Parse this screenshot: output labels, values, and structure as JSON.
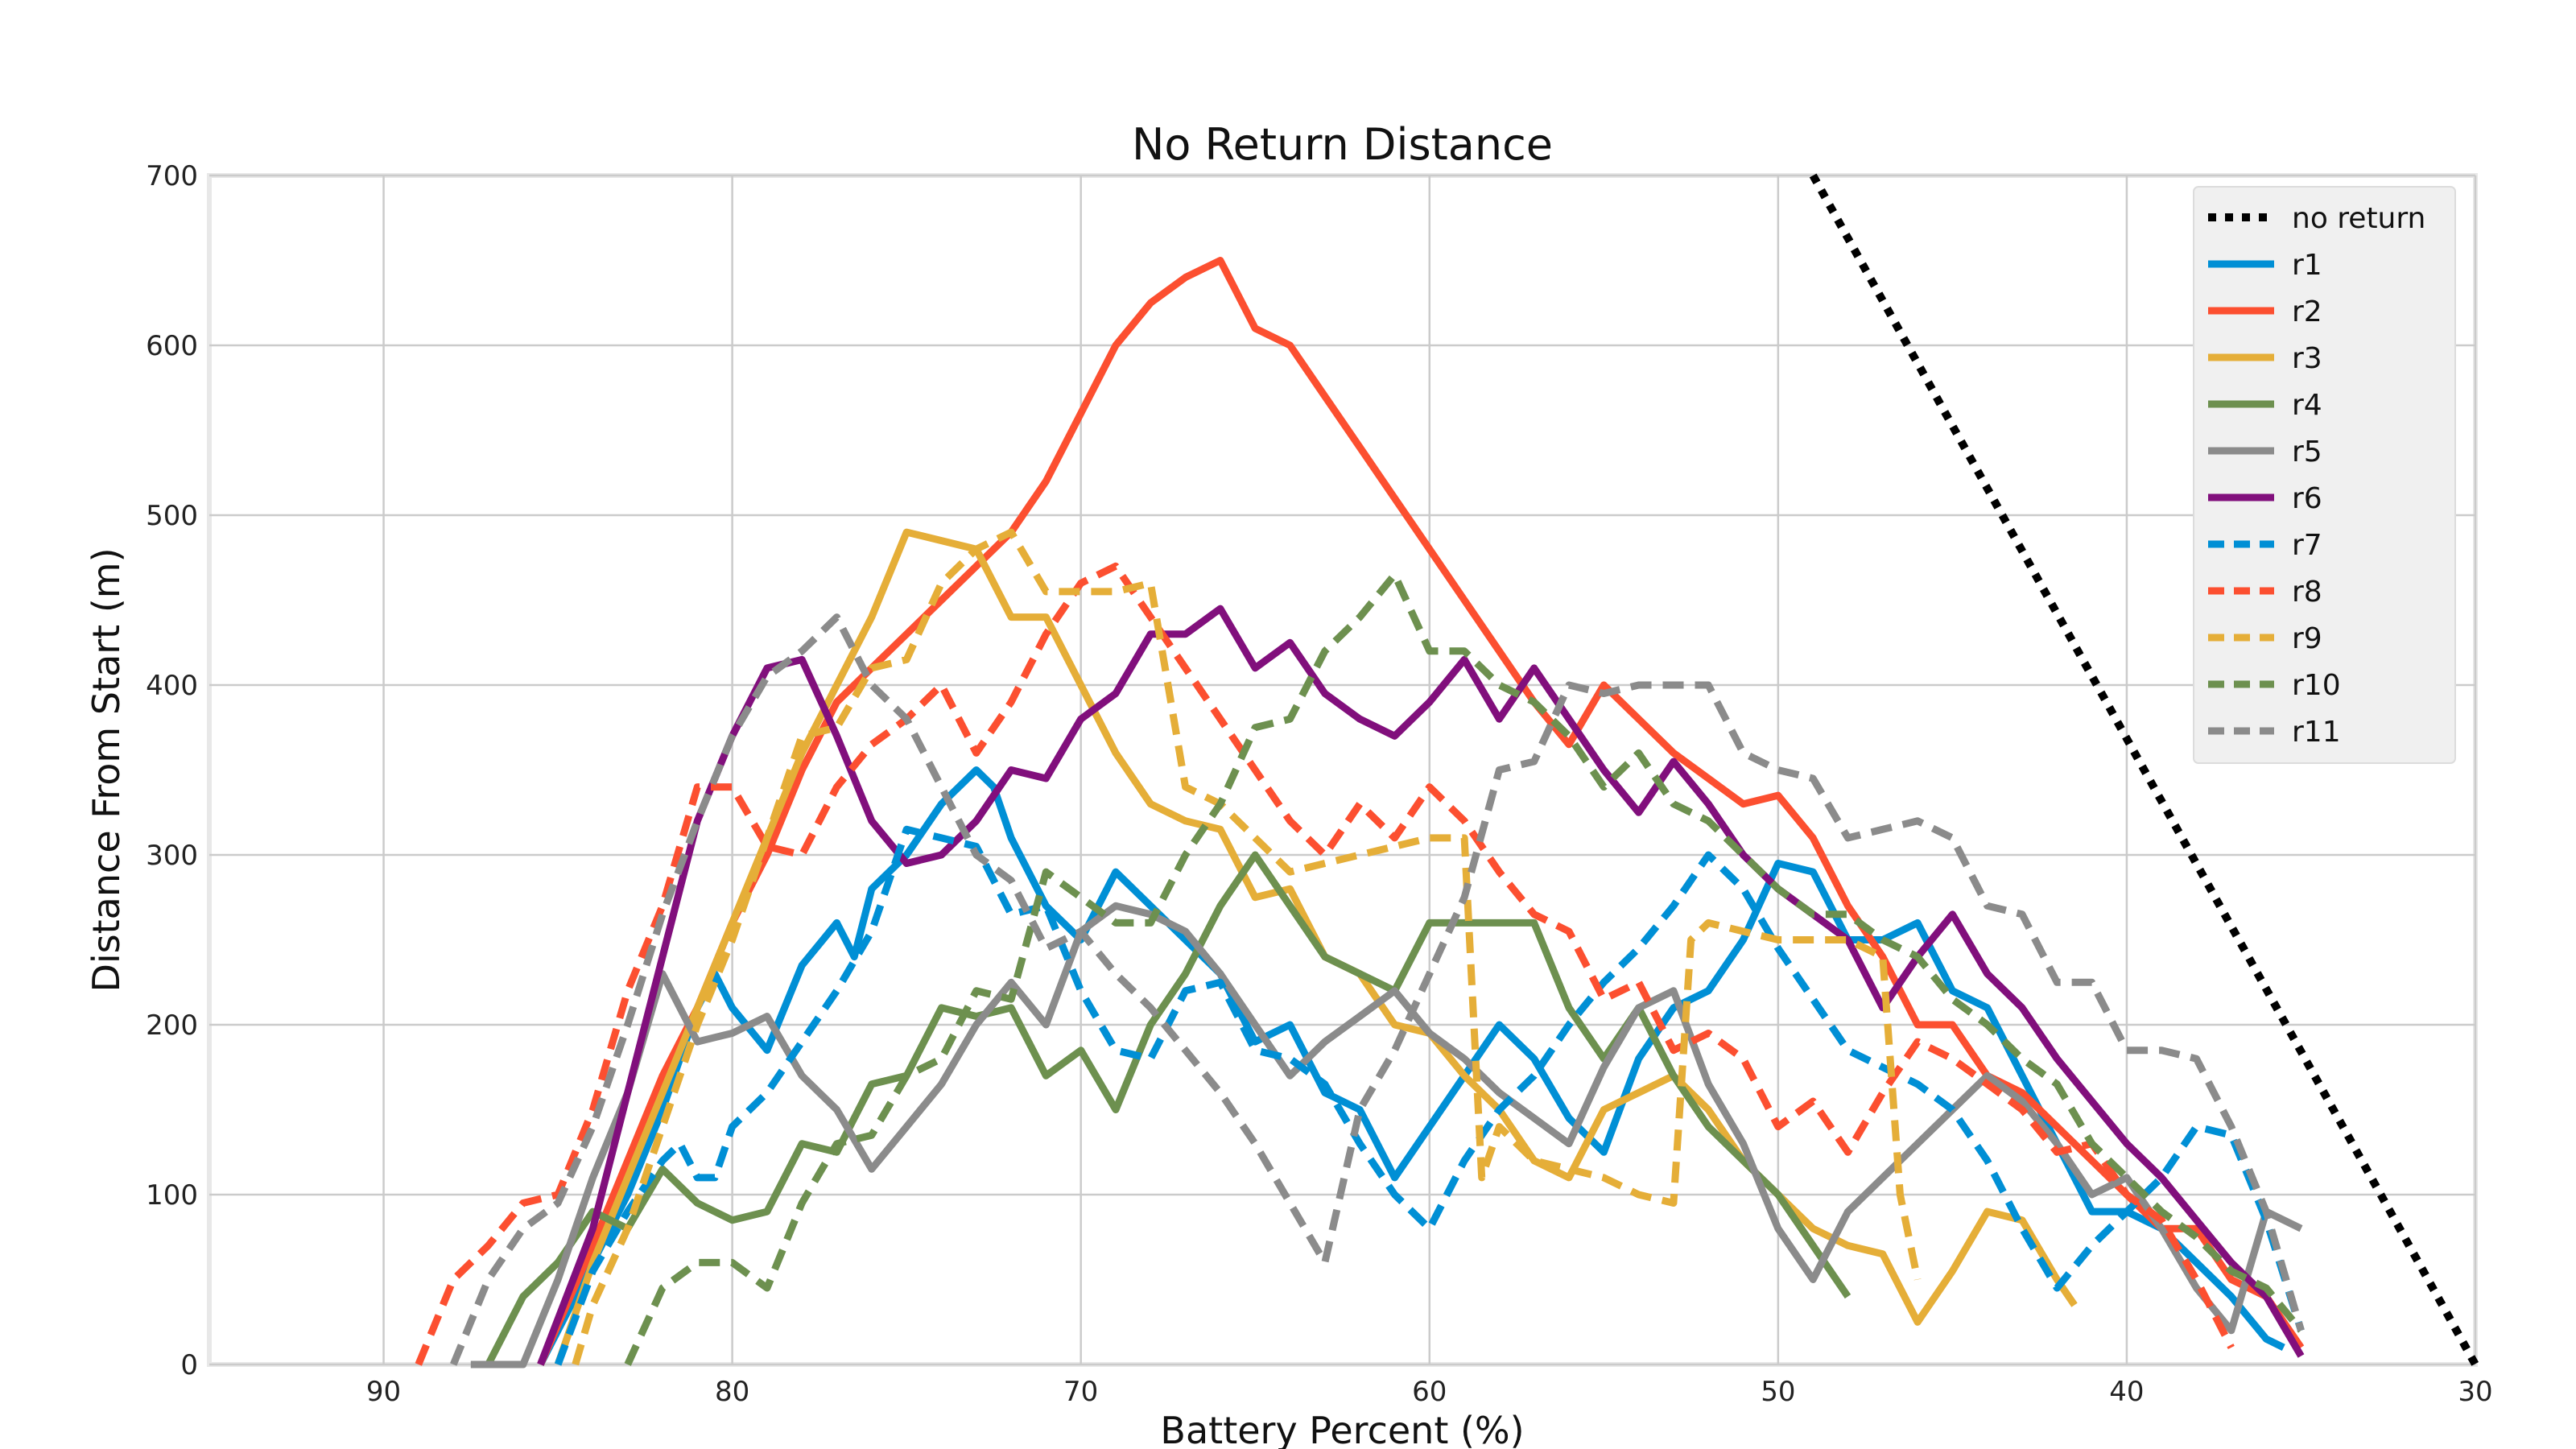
{
  "chart_data": {
    "type": "line",
    "title": "No Return Distance",
    "xlabel": "Battery Percent (%)",
    "ylabel": "Distance From Start (m)",
    "xlim": [
      95,
      30
    ],
    "ylim": [
      0,
      700
    ],
    "xticks": [
      90,
      80,
      70,
      60,
      50,
      40,
      30
    ],
    "yticks": [
      0,
      100,
      200,
      300,
      400,
      500,
      600,
      700
    ],
    "grid": true,
    "legend_position": "top-right",
    "series": [
      {
        "name": "no return",
        "color": "#000000",
        "style": "dotted",
        "x": [
          49,
          30
        ],
        "y": [
          700,
          0
        ]
      },
      {
        "name": "r1",
        "color": "#008fd5",
        "style": "solid",
        "x": [
          85.5,
          84,
          83,
          82,
          81,
          80.5,
          80,
          79,
          78,
          77,
          76.5,
          76,
          75,
          74,
          73,
          72.5,
          72,
          71,
          70,
          69,
          68,
          67,
          66,
          65,
          64,
          63,
          62,
          61,
          60,
          59,
          58,
          57,
          56,
          55,
          54,
          53,
          52,
          51,
          50,
          49,
          48,
          47,
          46,
          45,
          44,
          43,
          42,
          41,
          40,
          39,
          38,
          37,
          36,
          35.5
        ],
        "y": [
          0,
          60,
          100,
          150,
          210,
          230,
          210,
          185,
          235,
          260,
          240,
          280,
          300,
          330,
          350,
          340,
          310,
          270,
          250,
          290,
          270,
          250,
          230,
          190,
          200,
          160,
          150,
          110,
          140,
          170,
          200,
          180,
          145,
          125,
          180,
          210,
          220,
          250,
          295,
          290,
          250,
          250,
          260,
          220,
          210,
          170,
          130,
          90,
          90,
          80,
          60,
          40,
          15,
          10
        ]
      },
      {
        "name": "r2",
        "color": "#fc4f30",
        "style": "solid",
        "x": [
          85.5,
          84,
          83,
          82,
          81,
          80,
          79,
          78,
          77,
          76,
          75,
          74,
          73,
          72,
          71,
          70,
          69,
          68,
          67,
          66,
          65,
          64,
          63,
          62,
          61,
          60,
          59,
          58,
          57,
          56,
          55,
          54,
          53,
          52,
          51,
          50,
          49,
          48,
          47,
          46,
          45,
          44,
          43,
          42,
          41,
          40,
          39,
          38,
          37,
          36,
          35
        ],
        "y": [
          0,
          70,
          120,
          170,
          210,
          260,
          300,
          350,
          390,
          410,
          430,
          450,
          470,
          490,
          520,
          560,
          600,
          625,
          640,
          650,
          610,
          600,
          570,
          540,
          510,
          480,
          450,
          420,
          390,
          365,
          400,
          380,
          360,
          345,
          330,
          335,
          310,
          270,
          240,
          200,
          200,
          170,
          160,
          140,
          120,
          100,
          80,
          80,
          50,
          40,
          10
        ]
      },
      {
        "name": "r3",
        "color": "#e5ae38",
        "style": "solid",
        "x": [
          85,
          84,
          83,
          82,
          81,
          80,
          79,
          78,
          77,
          76,
          75,
          74,
          73,
          72,
          71,
          70,
          69,
          68,
          67,
          66,
          65,
          64,
          63,
          62,
          61,
          60,
          59,
          58,
          57,
          56,
          55,
          54,
          53,
          52,
          51,
          50,
          49,
          48,
          47,
          46,
          45,
          44,
          43,
          42,
          41.5
        ],
        "y": [
          0,
          60,
          110,
          160,
          210,
          260,
          310,
          360,
          400,
          440,
          490,
          485,
          480,
          440,
          440,
          400,
          360,
          330,
          320,
          315,
          275,
          280,
          240,
          230,
          200,
          195,
          170,
          150,
          120,
          110,
          150,
          160,
          170,
          150,
          120,
          100,
          80,
          70,
          65,
          25,
          55,
          90,
          85,
          50,
          35
        ]
      },
      {
        "name": "r4",
        "color": "#6d904f",
        "style": "solid",
        "x": [
          87,
          86,
          85,
          84,
          83,
          82,
          81,
          80,
          79,
          78,
          77,
          76,
          75,
          74,
          73,
          72,
          71,
          70,
          69,
          68,
          67,
          66,
          65,
          64,
          63,
          62,
          61,
          60,
          59,
          58,
          57,
          56,
          55,
          54,
          53,
          52,
          51,
          50,
          49,
          48
        ],
        "y": [
          0,
          40,
          60,
          90,
          80,
          115,
          95,
          85,
          90,
          130,
          125,
          165,
          170,
          210,
          205,
          210,
          170,
          185,
          150,
          200,
          230,
          270,
          300,
          270,
          240,
          230,
          220,
          260,
          260,
          260,
          260,
          210,
          180,
          210,
          170,
          140,
          120,
          100,
          70,
          40
        ]
      },
      {
        "name": "r5",
        "color": "#8b8b8b",
        "style": "solid",
        "x": [
          87.5,
          86,
          85,
          84,
          83,
          82,
          81,
          80,
          79,
          78,
          77,
          76,
          75,
          74,
          73,
          72,
          71,
          70,
          69,
          68,
          67,
          66,
          65,
          64,
          63,
          62,
          61,
          60,
          59,
          58,
          57,
          56,
          55,
          54,
          53,
          52,
          51,
          50,
          49,
          48,
          47,
          46,
          45,
          44,
          43,
          42,
          41,
          40,
          39,
          38,
          37,
          36,
          35
        ],
        "y": [
          0,
          0,
          50,
          110,
          160,
          230,
          190,
          195,
          205,
          170,
          150,
          115,
          140,
          165,
          200,
          225,
          200,
          255,
          270,
          265,
          255,
          230,
          200,
          170,
          190,
          205,
          220,
          195,
          180,
          160,
          145,
          130,
          175,
          210,
          220,
          165,
          130,
          80,
          50,
          90,
          110,
          130,
          150,
          170,
          155,
          130,
          100,
          110,
          80,
          45,
          20,
          90,
          80
        ]
      },
      {
        "name": "r6",
        "color": "#810f7c",
        "style": "solid",
        "x": [
          85.5,
          84,
          83,
          82,
          81,
          80,
          79,
          78,
          77,
          76,
          75,
          74,
          73,
          72,
          71,
          70,
          69,
          68,
          67,
          66,
          65,
          64,
          63,
          62,
          61,
          60,
          59,
          58,
          57,
          56,
          55,
          54,
          53,
          52,
          51,
          50,
          49,
          48,
          47,
          46,
          45,
          44,
          43,
          42,
          41,
          40,
          39,
          38,
          37,
          36,
          35
        ],
        "y": [
          0,
          80,
          160,
          240,
          320,
          370,
          410,
          415,
          370,
          320,
          295,
          300,
          320,
          350,
          345,
          380,
          395,
          430,
          430,
          445,
          410,
          425,
          395,
          380,
          370,
          390,
          415,
          380,
          410,
          380,
          350,
          325,
          355,
          330,
          300,
          280,
          265,
          250,
          210,
          240,
          265,
          230,
          210,
          180,
          155,
          130,
          110,
          85,
          60,
          40,
          5
        ]
      },
      {
        "name": "r7",
        "color": "#008fd5",
        "style": "dashed",
        "x": [
          85,
          84,
          83,
          82,
          81.5,
          81,
          80.5,
          80,
          79,
          78,
          77,
          76,
          75,
          74,
          73,
          72,
          71,
          70,
          69,
          68,
          67,
          66,
          65,
          64,
          63,
          62,
          61,
          60,
          59,
          58,
          57,
          56,
          55,
          54,
          53,
          52,
          51,
          50,
          49,
          48,
          47,
          46,
          45,
          44,
          43,
          42,
          41,
          40,
          39,
          38,
          37,
          36,
          35
        ],
        "y": [
          0,
          55,
          90,
          120,
          130,
          110,
          110,
          140,
          160,
          190,
          220,
          255,
          315,
          310,
          305,
          265,
          270,
          220,
          185,
          180,
          220,
          225,
          185,
          180,
          165,
          130,
          100,
          80,
          120,
          150,
          170,
          200,
          225,
          245,
          270,
          300,
          280,
          245,
          215,
          185,
          175,
          165,
          150,
          120,
          80,
          45,
          70,
          90,
          110,
          140,
          135,
          85,
          20
        ]
      },
      {
        "name": "r8",
        "color": "#fc4f30",
        "style": "dashed",
        "x": [
          89,
          88,
          87,
          86,
          85,
          84,
          83,
          82,
          81,
          80,
          79,
          78,
          77,
          76,
          75,
          74,
          73,
          72,
          71,
          70,
          69,
          68,
          67,
          66,
          65,
          64,
          63,
          62,
          61,
          60,
          59,
          58,
          57,
          56,
          55,
          54,
          53,
          52,
          51,
          50,
          49,
          48,
          47,
          46,
          45,
          44,
          43,
          42,
          41,
          40,
          39,
          38,
          37
        ],
        "y": [
          0,
          50,
          70,
          95,
          100,
          150,
          220,
          270,
          340,
          340,
          305,
          300,
          340,
          365,
          380,
          400,
          360,
          390,
          430,
          460,
          470,
          440,
          410,
          380,
          350,
          320,
          300,
          330,
          310,
          340,
          320,
          290,
          265,
          255,
          215,
          225,
          185,
          195,
          180,
          140,
          155,
          125,
          160,
          190,
          180,
          165,
          150,
          125,
          130,
          100,
          85,
          50,
          10
        ]
      },
      {
        "name": "r9",
        "color": "#e5ae38",
        "style": "dashed",
        "x": [
          84.5,
          84,
          83,
          82,
          81,
          80,
          79,
          78,
          77,
          76,
          75,
          74,
          73,
          72,
          71,
          70,
          69,
          68,
          67,
          66,
          65,
          64,
          63,
          62,
          61,
          60,
          59,
          58.5,
          58,
          57,
          56,
          55,
          54,
          53,
          52.5,
          52,
          51,
          50,
          49,
          48,
          47,
          46.5,
          46
        ],
        "y": [
          0,
          35,
          80,
          140,
          200,
          250,
          310,
          370,
          375,
          410,
          415,
          460,
          480,
          490,
          455,
          455,
          455,
          460,
          340,
          330,
          310,
          290,
          295,
          300,
          305,
          310,
          310,
          110,
          140,
          120,
          115,
          110,
          100,
          95,
          250,
          260,
          255,
          250,
          250,
          250,
          240,
          100,
          50
        ]
      },
      {
        "name": "r10",
        "color": "#6d904f",
        "style": "dashed",
        "x": [
          83,
          82,
          81,
          80,
          79,
          78,
          77,
          76,
          75,
          74,
          73,
          72,
          71,
          70,
          69,
          68,
          67,
          66,
          65,
          64,
          63,
          62,
          61,
          60,
          59,
          58,
          57,
          56,
          55,
          54,
          53,
          52,
          51,
          50,
          49,
          48,
          47,
          46,
          45,
          44,
          43,
          42,
          41,
          40,
          39,
          38,
          37,
          36,
          35
        ],
        "y": [
          0,
          45,
          60,
          60,
          45,
          95,
          130,
          135,
          170,
          180,
          220,
          215,
          290,
          275,
          260,
          260,
          300,
          330,
          375,
          380,
          420,
          440,
          465,
          420,
          420,
          400,
          390,
          370,
          340,
          360,
          330,
          320,
          300,
          280,
          265,
          265,
          250,
          240,
          215,
          200,
          180,
          165,
          130,
          110,
          90,
          75,
          55,
          45,
          20
        ]
      },
      {
        "name": "r11",
        "color": "#8b8b8b",
        "style": "dashed",
        "x": [
          88,
          87,
          86,
          85,
          84,
          83,
          82,
          81,
          80,
          79,
          78,
          77,
          76,
          75,
          74,
          73,
          72,
          71,
          70,
          69,
          68,
          67,
          66,
          65,
          64,
          63,
          62,
          61,
          60,
          59,
          58,
          57,
          56,
          55,
          54,
          53,
          52,
          51,
          50,
          49,
          48,
          47,
          46,
          45,
          44,
          43,
          42,
          41,
          40,
          39,
          38,
          37,
          36,
          35
        ],
        "y": [
          0,
          50,
          80,
          95,
          140,
          200,
          265,
          320,
          370,
          405,
          420,
          440,
          400,
          380,
          340,
          300,
          285,
          245,
          255,
          230,
          210,
          185,
          160,
          130,
          95,
          60,
          150,
          185,
          230,
          275,
          350,
          355,
          400,
          395,
          400,
          400,
          400,
          360,
          350,
          345,
          310,
          315,
          320,
          310,
          270,
          265,
          225,
          225,
          185,
          185,
          180,
          140,
          90,
          20
        ]
      }
    ]
  }
}
